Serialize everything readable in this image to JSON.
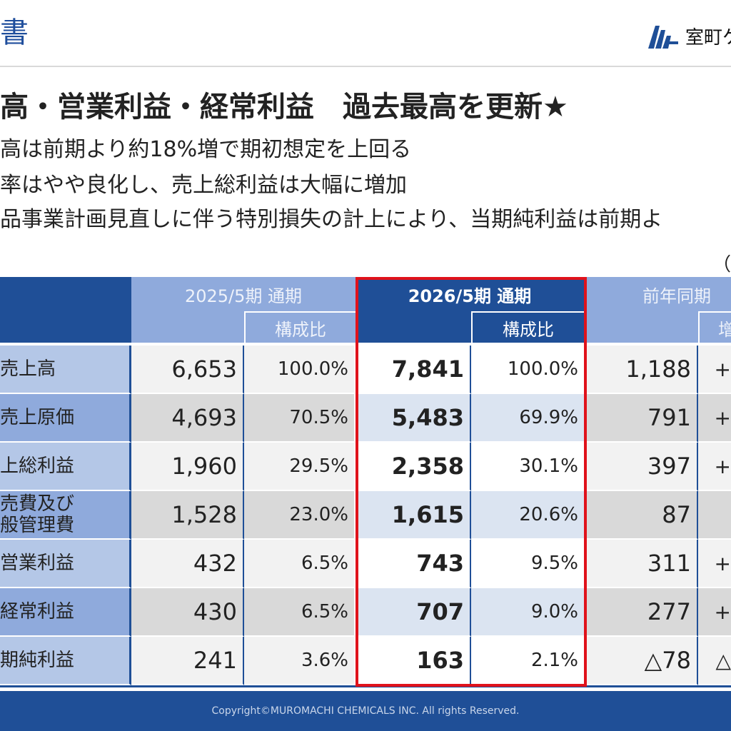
{
  "header": {
    "title": "書",
    "brand_name": "室町ケ"
  },
  "headline": "高・営業利益・経常利益　過去最高を更新★",
  "bullets": [
    "高は前期より約18%増で期初想定を上回る",
    "率はやや良化し、売上総利益は大幅に増加",
    "品事業計画見直しに伴う特別損失の計上により、当期純利益は前期よ"
  ],
  "unit_note": "（百",
  "table": {
    "prev_header": "2025/5期 通期",
    "curr_header": "2026/5期 通期",
    "yoy_header": "前年同期",
    "ratio_label": "構成比",
    "yoy_sub_label": "增",
    "rows": [
      {
        "label": "売上高",
        "prev": "6,653",
        "prev_ratio": "100.0%",
        "curr": "7,841",
        "curr_ratio": "100.0%",
        "diff": "1,188",
        "tail": "+"
      },
      {
        "label": "売上原価",
        "prev": "4,693",
        "prev_ratio": "70.5%",
        "curr": "5,483",
        "curr_ratio": "69.9%",
        "diff": "791",
        "tail": "+"
      },
      {
        "label": "上総利益",
        "prev": "1,960",
        "prev_ratio": "29.5%",
        "curr": "2,358",
        "curr_ratio": "30.1%",
        "diff": "397",
        "tail": "+"
      },
      {
        "label": "売費及び",
        "label2": "般管理費",
        "prev": "1,528",
        "prev_ratio": "23.0%",
        "curr": "1,615",
        "curr_ratio": "20.6%",
        "diff": "87",
        "tail": ""
      },
      {
        "label": "営業利益",
        "prev": "432",
        "prev_ratio": "6.5%",
        "curr": "743",
        "curr_ratio": "9.5%",
        "diff": "311",
        "tail": "+"
      },
      {
        "label": "経常利益",
        "prev": "430",
        "prev_ratio": "6.5%",
        "curr": "707",
        "curr_ratio": "9.0%",
        "diff": "277",
        "tail": "+"
      },
      {
        "label": "期純利益",
        "prev": "241",
        "prev_ratio": "3.6%",
        "curr": "163",
        "curr_ratio": "2.1%",
        "diff": "△78",
        "tail": "△"
      }
    ]
  },
  "footer": "Copyright©MUROMACHI CHEMICALS INC. All rights Reserved.",
  "colors": {
    "brand_blue": "#1f4f97",
    "header_light": "#8faadc",
    "label_col": "#8faadc",
    "highlight_red": "#e0121b"
  }
}
